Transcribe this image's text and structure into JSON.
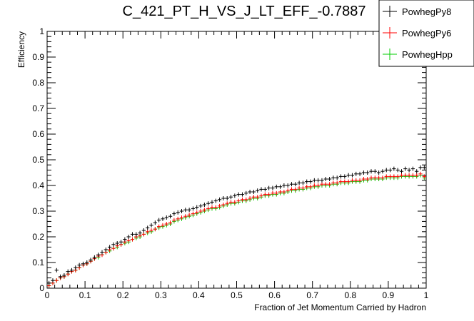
{
  "chart_data": {
    "type": "scatter",
    "title": "C_421_PT_H_VS_J_LT_EFF_-0.7887",
    "xlabel": "Fraction of Jet Momentum Carried by Hadron",
    "ylabel": "Efficiency",
    "xlim": [
      0,
      1
    ],
    "ylim": [
      0,
      1
    ],
    "x_ticks": [
      "0",
      "0.1",
      "0.2",
      "0.3",
      "0.4",
      "0.5",
      "0.6",
      "0.7",
      "0.8",
      "0.9",
      "1"
    ],
    "y_ticks": [
      "0",
      "0.1",
      "0.2",
      "0.3",
      "0.4",
      "0.5",
      "0.6",
      "0.7",
      "0.8",
      "0.9",
      "1"
    ],
    "grid": false,
    "legend_position": "top-right",
    "x": [
      0.005,
      0.015,
      0.025,
      0.035,
      0.045,
      0.055,
      0.065,
      0.075,
      0.085,
      0.095,
      0.105,
      0.115,
      0.125,
      0.135,
      0.145,
      0.155,
      0.165,
      0.175,
      0.185,
      0.195,
      0.205,
      0.215,
      0.225,
      0.235,
      0.245,
      0.255,
      0.265,
      0.275,
      0.285,
      0.295,
      0.305,
      0.315,
      0.325,
      0.335,
      0.345,
      0.355,
      0.365,
      0.375,
      0.385,
      0.395,
      0.405,
      0.415,
      0.425,
      0.435,
      0.445,
      0.455,
      0.465,
      0.475,
      0.485,
      0.495,
      0.505,
      0.515,
      0.525,
      0.535,
      0.545,
      0.555,
      0.565,
      0.575,
      0.585,
      0.595,
      0.605,
      0.615,
      0.625,
      0.635,
      0.645,
      0.655,
      0.665,
      0.675,
      0.685,
      0.695,
      0.705,
      0.715,
      0.725,
      0.735,
      0.745,
      0.755,
      0.765,
      0.775,
      0.785,
      0.795,
      0.805,
      0.815,
      0.825,
      0.835,
      0.845,
      0.855,
      0.865,
      0.875,
      0.885,
      0.895,
      0.905,
      0.915,
      0.925,
      0.935,
      0.945,
      0.955,
      0.965,
      0.975,
      0.985,
      0.995
    ],
    "series": [
      {
        "name": "PowhegPy8",
        "color": "#000000",
        "values": [
          0.02,
          0.03,
          0.07,
          0.045,
          0.05,
          0.065,
          0.07,
          0.08,
          0.09,
          0.095,
          0.1,
          0.11,
          0.12,
          0.13,
          0.14,
          0.15,
          0.16,
          0.17,
          0.175,
          0.18,
          0.19,
          0.2,
          0.21,
          0.21,
          0.215,
          0.225,
          0.235,
          0.245,
          0.255,
          0.265,
          0.27,
          0.275,
          0.28,
          0.29,
          0.295,
          0.3,
          0.305,
          0.305,
          0.31,
          0.315,
          0.32,
          0.325,
          0.33,
          0.335,
          0.34,
          0.345,
          0.35,
          0.35,
          0.355,
          0.36,
          0.365,
          0.365,
          0.37,
          0.375,
          0.375,
          0.38,
          0.385,
          0.385,
          0.39,
          0.39,
          0.395,
          0.395,
          0.4,
          0.4,
          0.405,
          0.405,
          0.41,
          0.41,
          0.415,
          0.415,
          0.42,
          0.42,
          0.42,
          0.425,
          0.425,
          0.43,
          0.43,
          0.435,
          0.435,
          0.44,
          0.44,
          0.445,
          0.445,
          0.45,
          0.45,
          0.455,
          0.455,
          0.45,
          0.455,
          0.46,
          0.46,
          0.465,
          0.46,
          0.455,
          0.465,
          0.46,
          0.465,
          0.455,
          0.47,
          0.47
        ]
      },
      {
        "name": "PowhegPy6",
        "color": "#ff0000",
        "values": [
          0.01,
          0.02,
          0.03,
          0.04,
          0.045,
          0.055,
          0.065,
          0.07,
          0.08,
          0.09,
          0.095,
          0.105,
          0.115,
          0.125,
          0.13,
          0.14,
          0.15,
          0.155,
          0.165,
          0.17,
          0.18,
          0.185,
          0.19,
          0.2,
          0.205,
          0.21,
          0.22,
          0.225,
          0.23,
          0.24,
          0.245,
          0.25,
          0.255,
          0.265,
          0.27,
          0.275,
          0.28,
          0.285,
          0.29,
          0.295,
          0.3,
          0.305,
          0.31,
          0.315,
          0.315,
          0.32,
          0.325,
          0.33,
          0.335,
          0.335,
          0.34,
          0.345,
          0.345,
          0.35,
          0.355,
          0.355,
          0.36,
          0.365,
          0.365,
          0.37,
          0.37,
          0.375,
          0.375,
          0.38,
          0.385,
          0.385,
          0.39,
          0.39,
          0.395,
          0.395,
          0.4,
          0.4,
          0.405,
          0.405,
          0.405,
          0.41,
          0.41,
          0.415,
          0.415,
          0.415,
          0.42,
          0.42,
          0.42,
          0.425,
          0.425,
          0.43,
          0.43,
          0.43,
          0.43,
          0.435,
          0.435,
          0.435,
          0.435,
          0.44,
          0.44,
          0.44,
          0.44,
          0.44,
          0.445,
          0.435
        ]
      },
      {
        "name": "PowhegHpp",
        "color": "#00cc00",
        "values": [
          0.01,
          0.02,
          0.03,
          0.04,
          0.045,
          0.055,
          0.065,
          0.07,
          0.08,
          0.09,
          0.095,
          0.105,
          0.115,
          0.12,
          0.13,
          0.14,
          0.145,
          0.155,
          0.16,
          0.17,
          0.175,
          0.18,
          0.19,
          0.195,
          0.2,
          0.21,
          0.215,
          0.22,
          0.23,
          0.235,
          0.24,
          0.245,
          0.25,
          0.26,
          0.265,
          0.27,
          0.275,
          0.28,
          0.285,
          0.29,
          0.295,
          0.3,
          0.305,
          0.31,
          0.31,
          0.315,
          0.32,
          0.325,
          0.33,
          0.33,
          0.335,
          0.34,
          0.34,
          0.345,
          0.35,
          0.35,
          0.355,
          0.36,
          0.36,
          0.365,
          0.365,
          0.37,
          0.37,
          0.375,
          0.38,
          0.38,
          0.385,
          0.385,
          0.39,
          0.39,
          0.395,
          0.395,
          0.4,
          0.4,
          0.4,
          0.405,
          0.405,
          0.41,
          0.41,
          0.41,
          0.415,
          0.415,
          0.415,
          0.42,
          0.42,
          0.425,
          0.425,
          0.425,
          0.425,
          0.43,
          0.43,
          0.43,
          0.43,
          0.435,
          0.435,
          0.435,
          0.435,
          0.435,
          0.44,
          0.43
        ]
      }
    ]
  }
}
